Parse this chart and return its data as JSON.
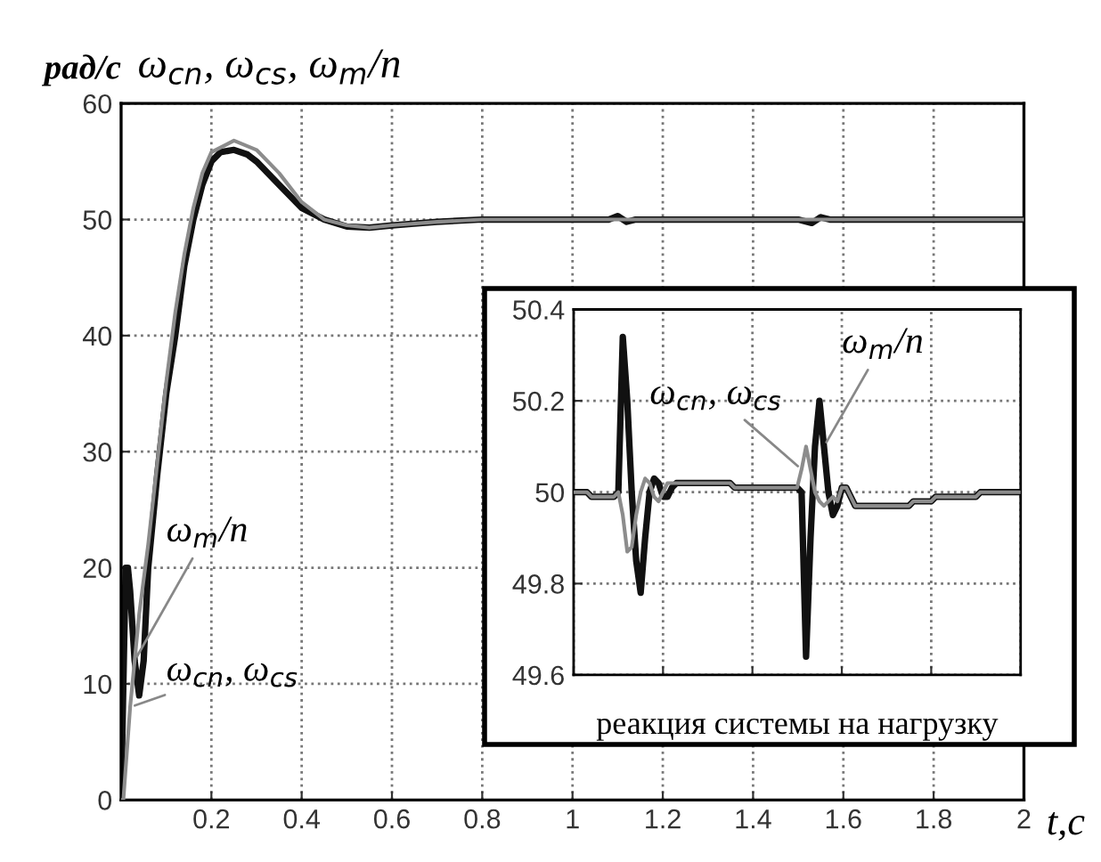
{
  "chart_data": [
    {
      "type": "line",
      "title": "ω$_{cn}$, ω$_{cs}$, ω$_{m}$/n",
      "ylabel": "рад/с",
      "xlabel": "t,c",
      "xlim": [
        0,
        2
      ],
      "ylim": [
        0,
        60
      ],
      "xticks": [
        0.2,
        0.4,
        0.6,
        0.8,
        1,
        1.2,
        1.4,
        1.6,
        1.8,
        2
      ],
      "yticks": [
        0,
        10,
        20,
        30,
        40,
        50,
        60
      ],
      "grid": true,
      "legend": "bottom left",
      "line_style": "solid",
      "marker": "none",
      "series": [
        {
          "name": "ω$_{cn}$, ω$_{cs}$",
          "color": "#8c8c8c",
          "x": [
            0,
            0.005,
            0.02,
            0.04,
            0.06,
            0.08,
            0.1,
            0.12,
            0.14,
            0.16,
            0.18,
            0.2,
            0.25,
            0.3,
            0.35,
            0.4,
            0.45,
            0.5,
            0.55,
            0.6,
            0.7,
            0.8,
            1.0,
            2.0
          ],
          "values": [
            0,
            0,
            8,
            16,
            22,
            29,
            36,
            42,
            47,
            51,
            54,
            55.8,
            56.8,
            56,
            54,
            51.5,
            50,
            49.5,
            49.3,
            49.5,
            49.8,
            50,
            50,
            50
          ]
        },
        {
          "name": "ω$_{m}$/n",
          "color": "#111111",
          "x": [
            0,
            0.005,
            0.01,
            0.015,
            0.02,
            0.03,
            0.04,
            0.05,
            0.06,
            0.08,
            0.1,
            0.12,
            0.14,
            0.16,
            0.18,
            0.2,
            0.22,
            0.25,
            0.28,
            0.3,
            0.35,
            0.4,
            0.45,
            0.5,
            0.55,
            0.6,
            0.7,
            0.8,
            1.0,
            1.08,
            1.1,
            1.12,
            1.14,
            1.2,
            1.5,
            1.53,
            1.55,
            1.57,
            1.6,
            2.0
          ],
          "values": [
            0,
            10,
            20,
            20,
            18,
            12,
            9,
            12,
            20,
            28,
            35,
            40,
            46,
            50,
            53,
            55,
            55.8,
            56,
            55.6,
            55,
            53,
            51,
            50,
            49.4,
            49.3,
            49.5,
            49.8,
            50,
            50,
            50,
            50.3,
            49.8,
            50,
            50,
            50,
            49.7,
            50.2,
            50,
            50,
            50
          ]
        }
      ]
    },
    {
      "type": "line",
      "annotations": [
        "реакция системы на нагрузку"
      ],
      "ylim": [
        49.6,
        50.4
      ],
      "yticks": [
        49.6,
        49.8,
        50,
        50.2,
        50.4
      ],
      "tick_labels": "y",
      "grid": true,
      "legend": "top",
      "line_style": "solid",
      "marker": "none",
      "categories": [
        null,
        null,
        null,
        null,
        null,
        null,
        null,
        null,
        null,
        null,
        null,
        null,
        null,
        null,
        null,
        null,
        null,
        null,
        null,
        null,
        null,
        null,
        null,
        null,
        null,
        null,
        null,
        null,
        null,
        null,
        null,
        null,
        null,
        null,
        null,
        null,
        null,
        null,
        null,
        null,
        null,
        null,
        null,
        null,
        null,
        null,
        null,
        null,
        null,
        null,
        null,
        null,
        null,
        null,
        null,
        null,
        null,
        null,
        null,
        null,
        null,
        null,
        null,
        null,
        null,
        null,
        null,
        null,
        null,
        null,
        null,
        null,
        null,
        null,
        null,
        null,
        null,
        null,
        null,
        null,
        null,
        null,
        null,
        null,
        null,
        null,
        null,
        null,
        null,
        null,
        null,
        null,
        null,
        null,
        null,
        null,
        null,
        null,
        null,
        null,
        null
      ],
      "series": [
        {
          "name": "ω$_{cn}$, ω$_{cs}$",
          "color": "#8c8c8c",
          "values": [
            50.0,
            50.0,
            50.0,
            50.0,
            49.99,
            49.99,
            49.99,
            49.99,
            49.99,
            49.99,
            50.0,
            49.95,
            49.87,
            49.88,
            49.95,
            50.0,
            50.03,
            50.02,
            49.99,
            49.98,
            50.0,
            50.02,
            50.02,
            50.02,
            50.02,
            50.02,
            50.02,
            50.02,
            50.02,
            50.02,
            50.02,
            50.02,
            50.02,
            50.02,
            50.02,
            50.02,
            50.01,
            50.01,
            50.01,
            50.01,
            50.01,
            50.01,
            50.01,
            50.01,
            50.01,
            50.01,
            50.01,
            50.01,
            50.01,
            50.01,
            50.01,
            50.05,
            50.1,
            50.05,
            50.0,
            49.98,
            49.97,
            49.98,
            49.99,
            49.98,
            50.01,
            50.01,
            49.99,
            49.97,
            49.97,
            49.97,
            49.97,
            49.97,
            49.97,
            49.97,
            49.97,
            49.97,
            49.97,
            49.97,
            49.97,
            49.97,
            49.98,
            49.98,
            49.98,
            49.98,
            49.98,
            49.99,
            49.99,
            49.99,
            49.99,
            49.99,
            49.99,
            49.99,
            49.99,
            49.99,
            49.99,
            50.0,
            50.0,
            50.0,
            50.0,
            50.0,
            50.0,
            50.0,
            50.0,
            50.0,
            50.0
          ]
        },
        {
          "name": "ω$_{m}$/n",
          "color": "#111111",
          "values": [
            50.0,
            50.0,
            50.0,
            50.0,
            49.99,
            49.99,
            49.99,
            49.99,
            49.99,
            49.99,
            50.0,
            50.34,
            50.2,
            50.0,
            49.85,
            49.78,
            49.9,
            50.0,
            50.03,
            50.02,
            49.99,
            49.99,
            50.01,
            50.02,
            50.02,
            50.02,
            50.02,
            50.02,
            50.02,
            50.02,
            50.02,
            50.02,
            50.02,
            50.02,
            50.02,
            50.02,
            50.01,
            50.01,
            50.01,
            50.01,
            50.01,
            50.01,
            50.01,
            50.01,
            50.01,
            50.01,
            50.01,
            50.01,
            50.01,
            50.01,
            50.01,
            50.0,
            49.64,
            49.9,
            50.1,
            50.2,
            50.1,
            50.0,
            49.95,
            49.97,
            50.01,
            50.01,
            49.99,
            49.97,
            49.97,
            49.97,
            49.97,
            49.97,
            49.97,
            49.97,
            49.97,
            49.97,
            49.97,
            49.97,
            49.97,
            49.97,
            49.98,
            49.98,
            49.98,
            49.98,
            49.98,
            49.99,
            49.99,
            49.99,
            49.99,
            49.99,
            49.99,
            49.99,
            49.99,
            49.99,
            49.99,
            50.0,
            50.0,
            50.0,
            50.0,
            50.0,
            50.0,
            50.0,
            50.0,
            50.0,
            50.0
          ]
        }
      ]
    }
  ]
}
